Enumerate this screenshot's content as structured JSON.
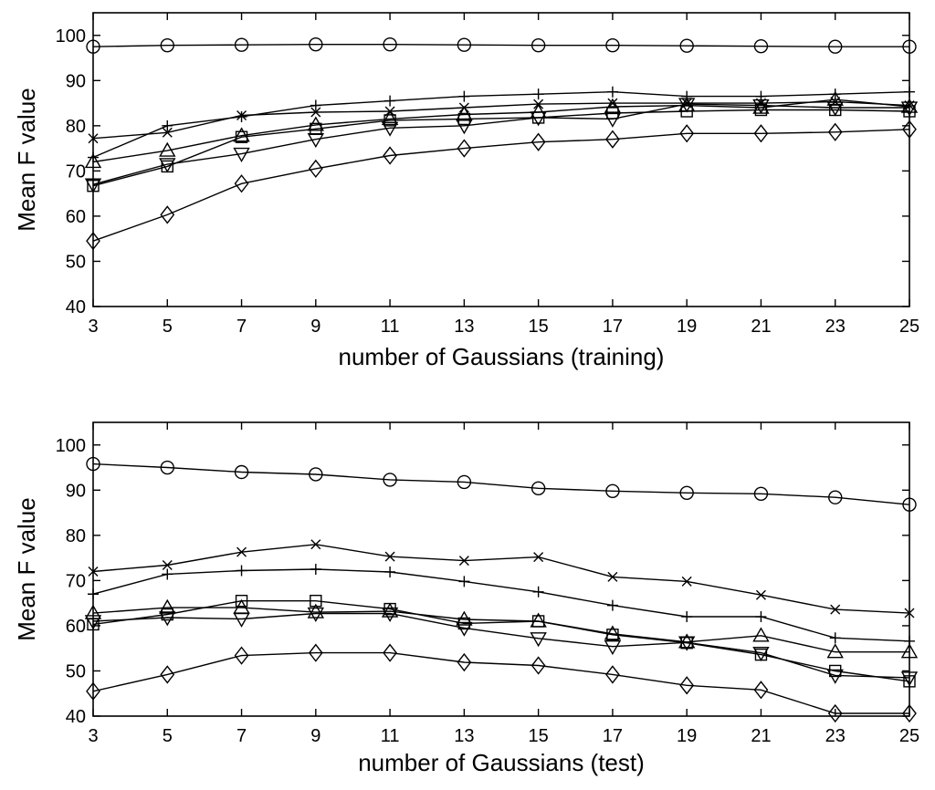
{
  "chart_data": [
    {
      "type": "line",
      "xlabel": "number of Gaussians (training)",
      "ylabel": "Mean F value",
      "xlim": [
        3,
        25
      ],
      "ylim": [
        40,
        105
      ],
      "xticks": [
        3,
        5,
        7,
        9,
        11,
        13,
        15,
        17,
        19,
        21,
        23,
        25
      ],
      "yticks": [
        40,
        50,
        60,
        70,
        80,
        90,
        100
      ],
      "grid": false,
      "legend": "none",
      "x": [
        3,
        5,
        7,
        9,
        11,
        13,
        15,
        17,
        19,
        21,
        23,
        25
      ],
      "series": [
        {
          "marker": "circle",
          "values": [
            97.5,
            97.8,
            97.9,
            98.0,
            98.0,
            97.9,
            97.8,
            97.8,
            97.7,
            97.6,
            97.5,
            97.5
          ]
        },
        {
          "marker": "x",
          "values": [
            77.2,
            78.5,
            82.3,
            83.0,
            83.2,
            84.0,
            84.8,
            85.0,
            85.0,
            85.0,
            85.3,
            84.5
          ]
        },
        {
          "marker": "plus",
          "values": [
            73.0,
            80.0,
            82.0,
            84.5,
            85.5,
            86.5,
            87.0,
            87.5,
            86.5,
            86.5,
            87.0,
            87.5
          ]
        },
        {
          "marker": "triangle",
          "values": [
            72.0,
            74.5,
            77.8,
            80.2,
            81.5,
            82.5,
            83.0,
            84.2,
            84.5,
            84.0,
            85.8,
            84.2
          ]
        },
        {
          "marker": "square",
          "values": [
            66.7,
            71.0,
            77.5,
            79.3,
            81.2,
            81.5,
            81.8,
            82.8,
            83.2,
            83.5,
            83.5,
            83.2
          ]
        },
        {
          "marker": "triangle-down",
          "values": [
            67.0,
            71.5,
            73.8,
            77.0,
            79.5,
            80.0,
            81.8,
            81.5,
            84.8,
            84.5,
            84.0,
            84.0
          ]
        },
        {
          "marker": "diamond",
          "values": [
            54.5,
            60.3,
            67.2,
            70.5,
            73.4,
            75.0,
            76.4,
            77.0,
            78.3,
            78.3,
            78.6,
            79.2
          ]
        }
      ]
    },
    {
      "type": "line",
      "xlabel": "number of Gaussians (test)",
      "ylabel": "Mean F value",
      "xlim": [
        3,
        25
      ],
      "ylim": [
        40,
        105
      ],
      "xticks": [
        3,
        5,
        7,
        9,
        11,
        13,
        15,
        17,
        19,
        21,
        23,
        25
      ],
      "yticks": [
        40,
        50,
        60,
        70,
        80,
        90,
        100
      ],
      "grid": false,
      "legend": "none",
      "x": [
        3,
        5,
        7,
        9,
        11,
        13,
        15,
        17,
        19,
        21,
        23,
        25
      ],
      "series": [
        {
          "marker": "circle",
          "values": [
            95.8,
            95.0,
            94.0,
            93.5,
            92.3,
            91.8,
            90.4,
            89.8,
            89.4,
            89.2,
            88.4,
            86.8
          ]
        },
        {
          "marker": "x",
          "values": [
            72.0,
            73.4,
            76.3,
            78.0,
            75.3,
            74.4,
            75.2,
            70.8,
            69.8,
            66.8,
            63.6,
            62.8
          ]
        },
        {
          "marker": "plus",
          "values": [
            67.0,
            71.4,
            72.2,
            72.5,
            71.9,
            69.8,
            67.5,
            64.5,
            62.0,
            62.0,
            57.3,
            56.6
          ]
        },
        {
          "marker": "triangle",
          "values": [
            62.8,
            64.0,
            64.0,
            63.0,
            63.2,
            61.4,
            61.0,
            58.2,
            56.4,
            57.8,
            54.2,
            54.2
          ]
        },
        {
          "marker": "square",
          "values": [
            60.3,
            62.5,
            65.5,
            65.5,
            63.7,
            60.5,
            61.0,
            58.0,
            56.2,
            53.6,
            50.0,
            47.7
          ]
        },
        {
          "marker": "triangle-down",
          "values": [
            61.0,
            61.8,
            61.5,
            62.7,
            62.7,
            59.5,
            57.2,
            55.4,
            56.3,
            54.0,
            49.0,
            48.5
          ]
        },
        {
          "marker": "diamond",
          "values": [
            45.5,
            49.2,
            53.4,
            54.0,
            54.0,
            51.9,
            51.2,
            49.2,
            46.8,
            45.8,
            40.6,
            40.6
          ]
        }
      ]
    }
  ]
}
